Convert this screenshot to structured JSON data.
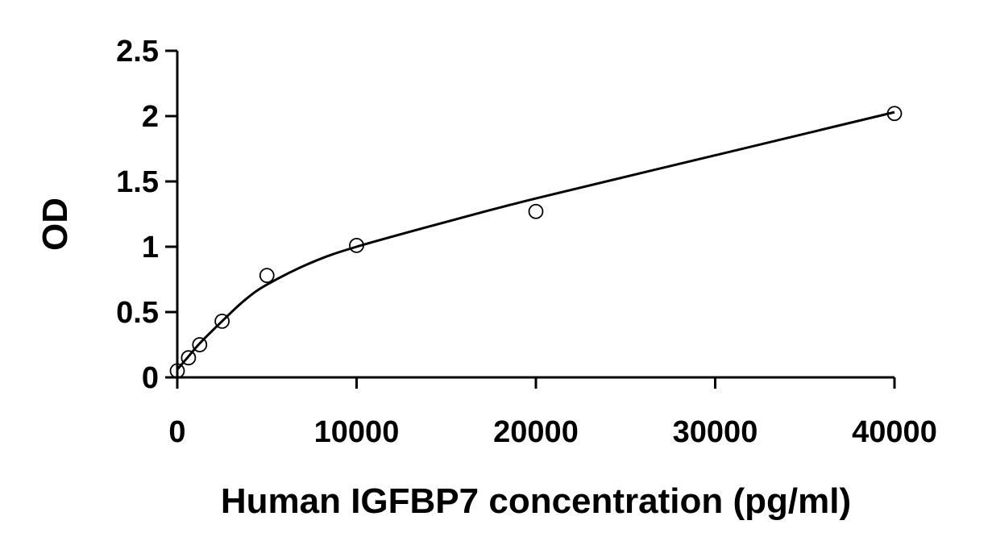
{
  "chart_data": {
    "type": "scatter",
    "title": "",
    "xlabel": "Human IGFBP7 concentration (pg/ml)",
    "ylabel": "OD",
    "xlim": [
      0,
      40000
    ],
    "ylim": [
      0,
      2.5
    ],
    "x_ticks": [
      0,
      10000,
      20000,
      30000,
      40000
    ],
    "y_ticks": [
      0,
      0.5,
      1,
      1.5,
      2,
      2.5
    ],
    "x_tick_labels": [
      "0",
      "10000",
      "20000",
      "30000",
      "40000"
    ],
    "y_tick_labels": [
      "0",
      "0.5",
      "1",
      "1.5",
      "2",
      "2.5"
    ],
    "grid": false,
    "legend": "none",
    "series": [
      {
        "marker": "open-circle",
        "x": [
          0,
          625,
          1250,
          2500,
          5000,
          10000,
          20000,
          40000
        ],
        "y": [
          0.05,
          0.15,
          0.25,
          0.43,
          0.78,
          1.01,
          1.27,
          2.02
        ]
      }
    ],
    "fit_curve": {
      "style": "solid",
      "x": [
        0,
        625,
        1250,
        2500,
        3750,
        5000,
        7500,
        10000,
        15000,
        20000,
        30000,
        40000
      ],
      "y": [
        0.06,
        0.16,
        0.26,
        0.43,
        0.59,
        0.71,
        0.88,
        1.0,
        1.19,
        1.37,
        1.7,
        2.03
      ]
    },
    "colors": {
      "axis": "#000000",
      "marker_stroke": "#000000",
      "curve": "#000000",
      "background": "#ffffff"
    }
  }
}
